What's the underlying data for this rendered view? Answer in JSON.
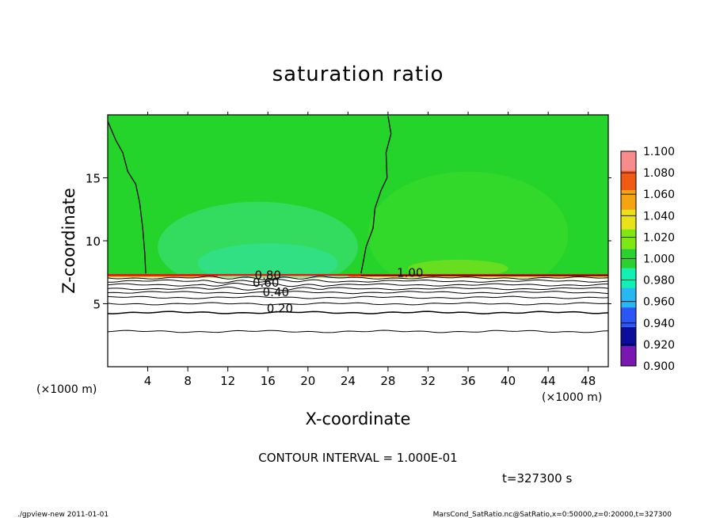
{
  "chart_data": {
    "type": "heatmap",
    "title": "saturation ratio",
    "xlabel": "X-coordinate",
    "ylabel": "Z-coordinate",
    "x_unit": "(×1000 m)",
    "y_unit": "(×1000 m)",
    "xlim": [
      0,
      50
    ],
    "ylim": [
      0,
      20
    ],
    "x_ticks": [
      4,
      8,
      12,
      16,
      20,
      24,
      28,
      32,
      36,
      40,
      44,
      48
    ],
    "y_ticks": [
      5,
      10,
      15
    ],
    "colorbar": {
      "levels": [
        0.9,
        0.92,
        0.94,
        0.96,
        0.98,
        1.0,
        1.02,
        1.04,
        1.06,
        1.08,
        1.1
      ],
      "labels": [
        "0.900",
        "0.920",
        "0.940",
        "0.960",
        "0.980",
        "1.000",
        "1.020",
        "1.040",
        "1.060",
        "1.080",
        "1.100"
      ],
      "colors": [
        "#7a17b0",
        "#0d0d9c",
        "#2c55f5",
        "#27b8f2",
        "#13f0b4",
        "#2bd12e",
        "#7fe814",
        "#e9e218",
        "#f5a411",
        "#f05a13",
        "#f0131a",
        "#f78c8c"
      ]
    },
    "contour_interval": "CONTOUR INTERVAL = 1.000E-01",
    "contour_labels": [
      {
        "text": "1.00",
        "x": 30.2,
        "z": 7.15
      },
      {
        "text": "0.80",
        "x": 16.0,
        "z": 6.95
      },
      {
        "text": "0.60",
        "x": 15.8,
        "z": 6.35
      },
      {
        "text": "0.40",
        "x": 16.8,
        "z": 5.6
      },
      {
        "text": "0.20",
        "x": 17.2,
        "z": 4.3
      }
    ],
    "contour_levels_z": [
      {
        "value": 0.9,
        "z": 7.05
      },
      {
        "value": 0.8,
        "z": 6.8
      },
      {
        "value": 0.7,
        "z": 6.5
      },
      {
        "value": 0.6,
        "z": 6.2
      },
      {
        "value": 0.5,
        "z": 5.9
      },
      {
        "value": 0.4,
        "z": 5.5
      },
      {
        "value": 0.3,
        "z": 5.0
      },
      {
        "value": 0.2,
        "z": 4.3
      },
      {
        "value": 0.1,
        "z": 2.8
      }
    ],
    "boundary_z": 7.3,
    "time": "t=327300 s"
  },
  "footer": {
    "left": "./gpview-new   2011-01-01",
    "right": "MarsCond_SatRatio.nc@SatRatio,x=0:50000,z=0:20000,t=327300"
  },
  "icons": {
    "plot": "contour-plot"
  }
}
